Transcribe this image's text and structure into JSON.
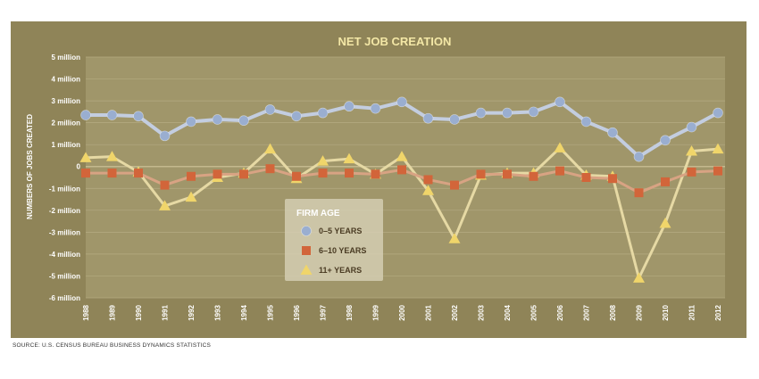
{
  "colors": {
    "panel_bg": "#8f8458",
    "plot_bg": "#a0966a",
    "title": "#f3e7a6",
    "axis_text": "#ffffff",
    "gridline": "#b5ab82",
    "zero_line": "#c4b98e",
    "legend_bg": "#d8d2b8",
    "legend_title": "#ffffff",
    "legend_text": "#4a3b23",
    "series_0_5": "#9aaed0",
    "series_0_5_line": "#c3cde0",
    "series_6_10": "#d2653a",
    "series_6_10_line": "#d8a383",
    "series_11_plus": "#f0d56a",
    "series_11_plus_line": "#e6d9a4"
  },
  "source": "SOURCE: U.S. CENSUS BUREAU BUSINESS DYNAMICS STATISTICS",
  "chart_data": {
    "type": "line",
    "title": "NET JOB CREATION",
    "ylabel": "NUMBERS OF JOBS CREATED",
    "xlabel": "",
    "ylim": [
      -6,
      5
    ],
    "grid": true,
    "y_ticks": [
      {
        "value": 5,
        "label": "5 million"
      },
      {
        "value": 4,
        "label": "4 million"
      },
      {
        "value": 3,
        "label": "3 million"
      },
      {
        "value": 2,
        "label": "2 million"
      },
      {
        "value": 1,
        "label": "1 million"
      },
      {
        "value": 0,
        "label": "0"
      },
      {
        "value": -1,
        "label": "-1 million"
      },
      {
        "value": -2,
        "label": "-2 million"
      },
      {
        "value": -3,
        "label": "-3 million"
      },
      {
        "value": -4,
        "label": "-4 million"
      },
      {
        "value": -5,
        "label": "-5 million"
      },
      {
        "value": -6,
        "label": "-6 million"
      }
    ],
    "categories": [
      "1988",
      "1989",
      "1990",
      "1991",
      "1992",
      "1993",
      "1994",
      "1995",
      "1996",
      "1997",
      "1998",
      "1999",
      "2000",
      "2001",
      "2002",
      "2003",
      "2004",
      "2005",
      "2006",
      "2007",
      "2008",
      "2009",
      "2010",
      "2011",
      "2012"
    ],
    "legend": {
      "title": "FIRM AGE",
      "position": "center-left"
    },
    "series": [
      {
        "name": "0–5 YEARS",
        "marker": "circle",
        "values": [
          2.35,
          2.35,
          2.3,
          1.4,
          2.05,
          2.15,
          2.1,
          2.6,
          2.3,
          2.45,
          2.75,
          2.65,
          2.95,
          2.2,
          2.15,
          2.45,
          2.45,
          2.5,
          2.95,
          2.05,
          1.55,
          0.45,
          1.2,
          1.8,
          2.45
        ]
      },
      {
        "name": "6–10 YEARS",
        "marker": "square",
        "values": [
          -0.3,
          -0.3,
          -0.3,
          -0.85,
          -0.45,
          -0.35,
          -0.35,
          -0.1,
          -0.45,
          -0.3,
          -0.3,
          -0.35,
          -0.15,
          -0.6,
          -0.85,
          -0.35,
          -0.35,
          -0.45,
          -0.2,
          -0.5,
          -0.55,
          -1.2,
          -0.7,
          -0.25,
          -0.2
        ]
      },
      {
        "name": "11+ YEARS",
        "marker": "triangle",
        "values": [
          0.4,
          0.45,
          -0.25,
          -1.8,
          -1.4,
          -0.5,
          -0.3,
          0.8,
          -0.55,
          0.25,
          0.35,
          -0.35,
          0.45,
          -1.1,
          -3.3,
          -0.4,
          -0.3,
          -0.3,
          0.85,
          -0.4,
          -0.45,
          -5.1,
          -2.6,
          0.7,
          0.8
        ]
      }
    ]
  }
}
